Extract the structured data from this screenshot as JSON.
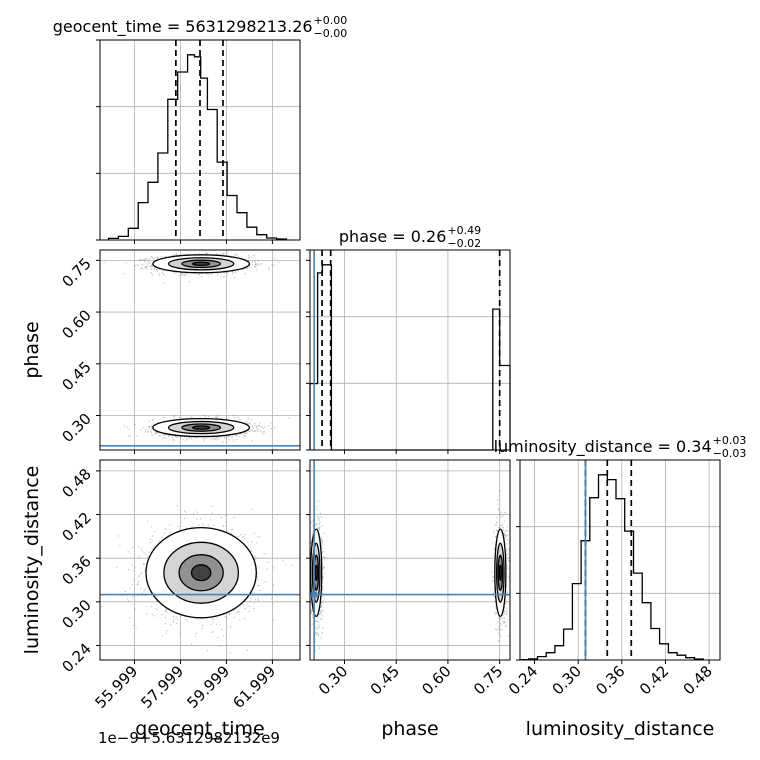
{
  "chart_data": {
    "type": "corner",
    "parameters": [
      "geocent_time",
      "phase",
      "luminosity_distance"
    ],
    "axis_labels": {
      "geocent_time": "geocent_time",
      "phase": "phase",
      "luminosity_distance": "luminosity_distance"
    },
    "titles": [
      {
        "param": "geocent_time",
        "text": "geocent_time = 5631298213.26",
        "plus": "+0.00",
        "minus": "−0.00"
      },
      {
        "param": "phase",
        "text": "phase = 0.26",
        "plus": "+0.49",
        "minus": "−0.02"
      },
      {
        "param": "luminosity_distance",
        "text": "luminosity_distance = 0.34",
        "plus": "+0.03",
        "minus": "−0.03"
      }
    ],
    "geocent_time_offset_text": "1e−9+5.6312982132e9",
    "ranges": {
      "geocent_time": [
        54.5,
        63.2
      ],
      "phase": [
        0.2,
        0.78
      ],
      "luminosity_distance": [
        0.22,
        0.495
      ]
    },
    "ticks": {
      "geocent_time": {
        "values": [
          55.999,
          57.999,
          59.999,
          61.999
        ],
        "labels": [
          "55.999",
          "57.999",
          "59.999",
          "61.999"
        ]
      },
      "phase": {
        "values": [
          0.3,
          0.45,
          0.6,
          0.75
        ],
        "labels": [
          "0.30",
          "0.45",
          "0.60",
          "0.75"
        ]
      },
      "luminosity_distance": {
        "values": [
          0.24,
          0.3,
          0.36,
          0.42,
          0.48
        ],
        "labels": [
          "0.24",
          "0.30",
          "0.36",
          "0.42",
          "0.48"
        ]
      }
    },
    "grid": true,
    "injection": {
      "phase": 0.212,
      "luminosity_distance": 0.31,
      "color": "#4682b4"
    },
    "quantiles": {
      "geocent_time": [
        57.8,
        58.85,
        59.85
      ],
      "phase": [
        0.235,
        0.26,
        0.75
      ],
      "luminosity_distance": [
        0.31,
        0.34,
        0.373
      ]
    },
    "histograms": {
      "geocent_time": {
        "edges": [
          54.87,
          55.3,
          55.73,
          56.16,
          56.59,
          57.02,
          57.45,
          57.88,
          58.31,
          58.61,
          58.88,
          59.17,
          59.6,
          60.03,
          60.46,
          60.89,
          61.32,
          61.75,
          62.18,
          62.61
        ],
        "counts": [
          0.8,
          1.8,
          5.8,
          18.5,
          28.5,
          43,
          69.5,
          83,
          91.5,
          90.5,
          80,
          64.5,
          38.5,
          22,
          13.5,
          6.3,
          2.6,
          1,
          0.5
        ]
      },
      "phase": {
        "edges": [
          0.2,
          0.222,
          0.236,
          0.262,
          0.73,
          0.75,
          0.78
        ],
        "counts": [
          0.165,
          0.44,
          0.46,
          0,
          0.35,
          0.21
        ]
      },
      "luminosity_distance": {
        "edges": [
          0.22,
          0.232,
          0.244,
          0.256,
          0.268,
          0.28,
          0.292,
          0.304,
          0.316,
          0.328,
          0.34,
          0.352,
          0.364,
          0.376,
          0.388,
          0.4,
          0.412,
          0.424,
          0.436,
          0.448,
          0.46,
          0.472
        ],
        "counts": [
          0.2,
          0.6,
          1.8,
          3.8,
          7.5,
          16.2,
          40,
          62.5,
          85,
          97,
          94.5,
          84.5,
          67.5,
          45.5,
          30,
          16.5,
          8.5,
          3.8,
          2.5,
          1.2,
          0.5
        ]
      }
    },
    "joint": {
      "geocent_time-phase": {
        "centers": [
          [
            58.9,
            0.74
          ],
          [
            58.9,
            0.265
          ]
        ],
        "sigma": [
          1.05,
          0.013
        ]
      },
      "geocent_time-luminosity_distance": {
        "centers": [
          [
            58.9,
            0.34
          ]
        ],
        "sigma": [
          1.2,
          0.031
        ]
      },
      "phase-luminosity_distance": {
        "centers": [
          [
            0.218,
            0.34
          ],
          [
            0.752,
            0.34
          ]
        ],
        "sigma": [
          0.008,
          0.03
        ]
      }
    }
  }
}
